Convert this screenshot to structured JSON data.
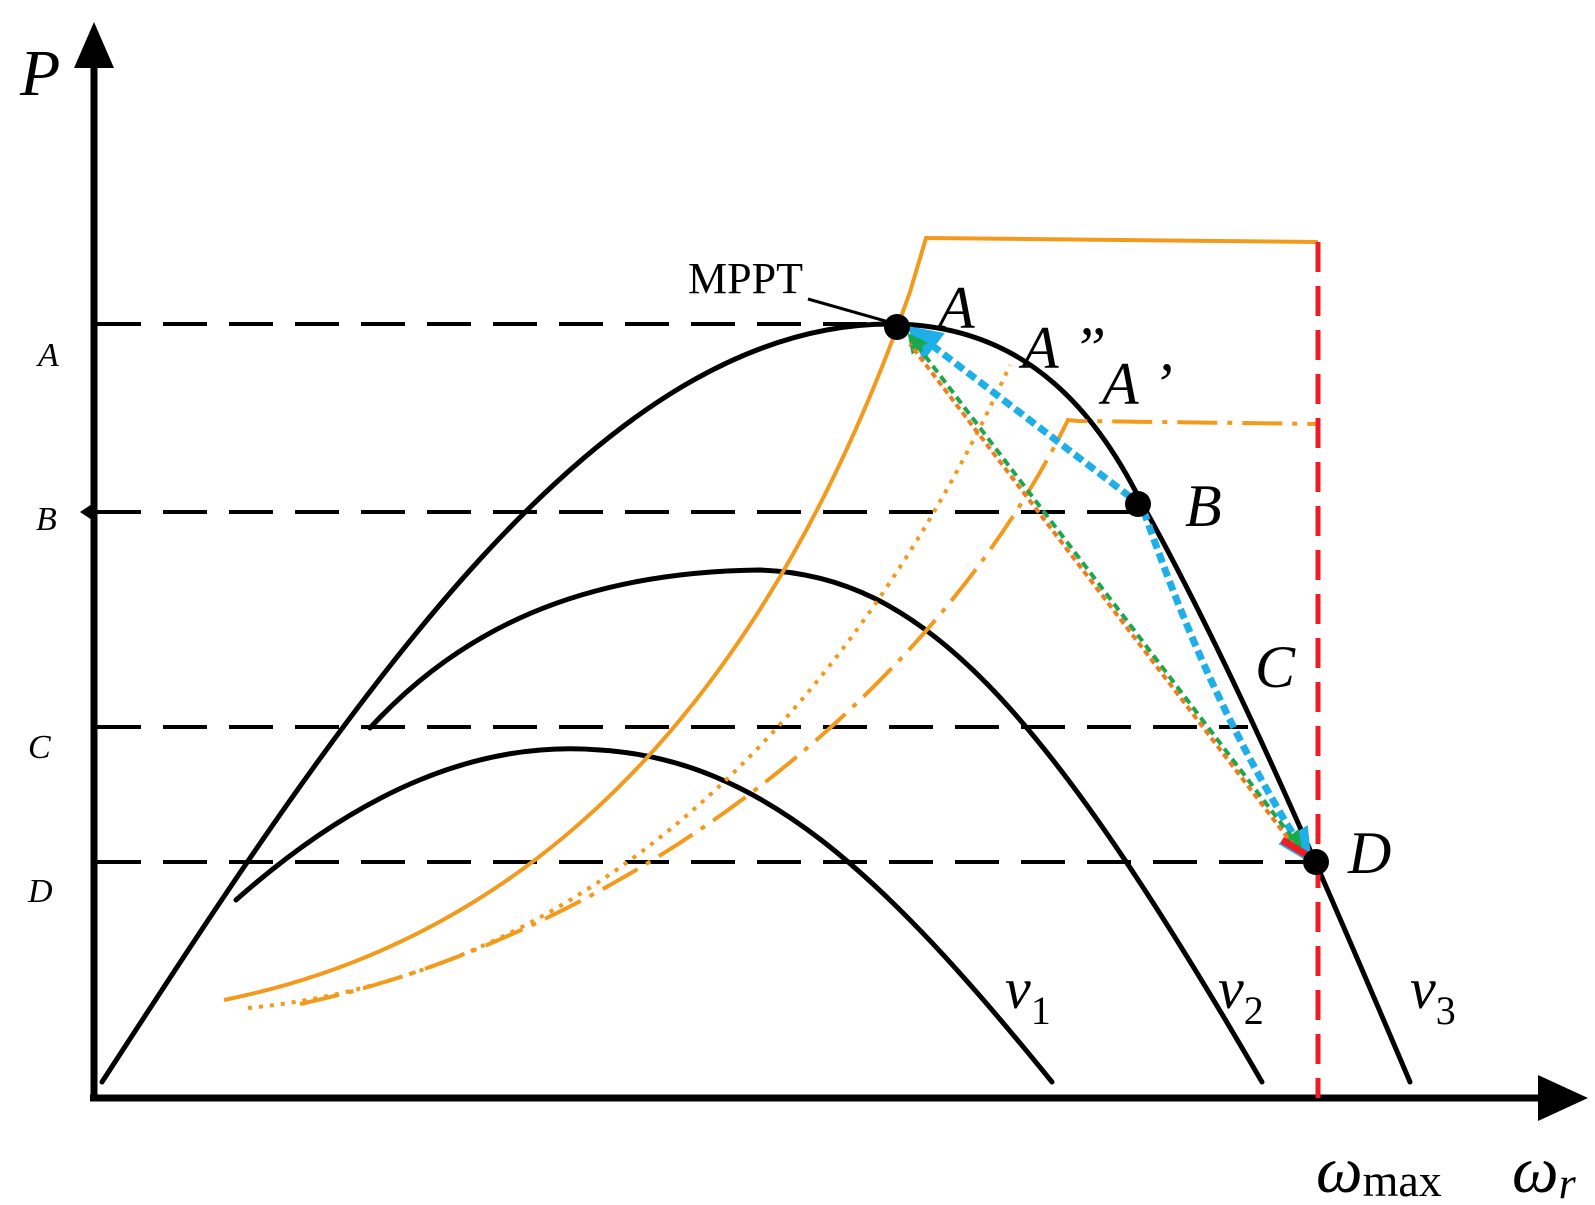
{
  "axes": {
    "y_label": "P",
    "x_label_main": "ω",
    "x_label_sub": "r",
    "omega_max_main": "ω",
    "omega_max_sub": "max"
  },
  "levels": {
    "A": "A",
    "B": "B",
    "C": "C",
    "D": "D"
  },
  "points": {
    "A": "A",
    "A_double_prime": "A ”",
    "A_prime": "A ’",
    "B": "B",
    "C": "C",
    "D": "D"
  },
  "annotations": {
    "mppt": "MPPT"
  },
  "curves": {
    "v1_main": "v",
    "v1_sub": "1",
    "v2_main": "v",
    "v2_sub": "2",
    "v3_main": "v",
    "v3_sub": "3"
  },
  "colors": {
    "curve": "#000000",
    "orange": "#f39a1c",
    "omega_max_line": "#ee1c24",
    "blue_arrow": "#1eaee8",
    "green_arrow": "#1aa84c",
    "orange_arrow": "#f07c1e"
  }
}
